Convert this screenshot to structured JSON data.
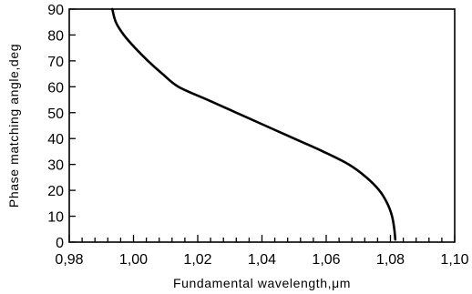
{
  "chart_data": {
    "type": "line",
    "title": "",
    "xlabel": "Fundamental wavelength,μm",
    "ylabel": "Phase matching angle,deg",
    "xlim": [
      0.98,
      1.1
    ],
    "ylim": [
      0,
      90
    ],
    "x_ticks": [
      "0,98",
      "1,00",
      "1,02",
      "1,04",
      "1,06",
      "1,08",
      "1,10"
    ],
    "y_ticks": [
      "0",
      "10",
      "20",
      "30",
      "40",
      "50",
      "60",
      "70",
      "80",
      "90"
    ],
    "grid": false,
    "series": [
      {
        "points": [
          {
            "x": 0.9934,
            "y": 90
          },
          {
            "x": 0.9945,
            "y": 85
          },
          {
            "x": 0.997,
            "y": 80
          },
          {
            "x": 1.0005,
            "y": 75
          },
          {
            "x": 1.0045,
            "y": 70
          },
          {
            "x": 1.009,
            "y": 65
          },
          {
            "x": 1.014,
            "y": 60
          },
          {
            "x": 1.023,
            "y": 55
          },
          {
            "x": 1.032,
            "y": 50
          },
          {
            "x": 1.041,
            "y": 45
          },
          {
            "x": 1.05,
            "y": 40
          },
          {
            "x": 1.059,
            "y": 35
          },
          {
            "x": 1.067,
            "y": 30
          },
          {
            "x": 1.0725,
            "y": 25
          },
          {
            "x": 1.0765,
            "y": 20
          },
          {
            "x": 1.079,
            "y": 15
          },
          {
            "x": 1.0805,
            "y": 10
          },
          {
            "x": 1.0812,
            "y": 5
          },
          {
            "x": 1.0815,
            "y": 1
          }
        ]
      }
    ]
  }
}
